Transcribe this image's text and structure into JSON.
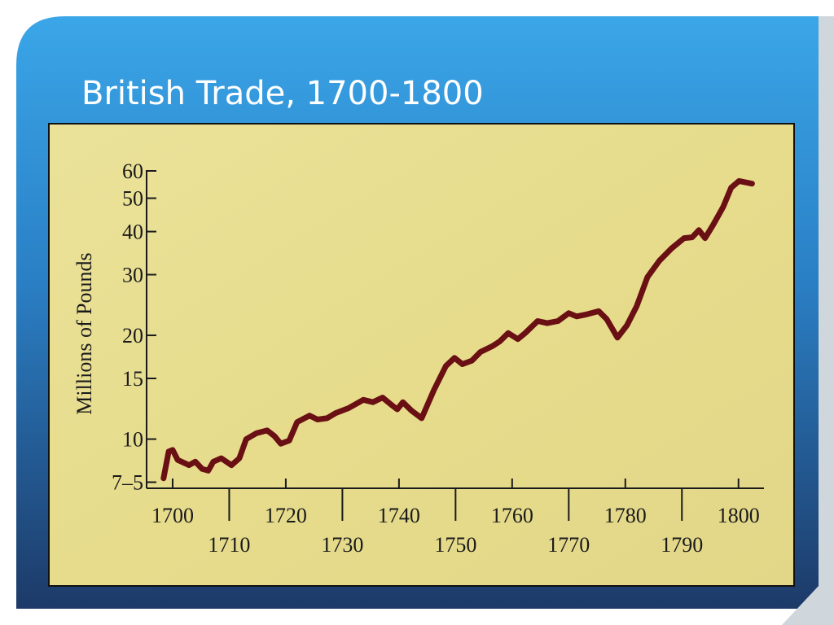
{
  "chart_data": {
    "type": "line",
    "title": "British Trade, 1700-1800",
    "ylabel": "Millions of Pounds",
    "log_scale": true,
    "grid": false,
    "color": "#6a1014",
    "xlim": [
      1695.4,
      1804.5
    ],
    "xticks": [
      1700,
      1710,
      1720,
      1730,
      1740,
      1750,
      1760,
      1770,
      1780,
      1790,
      1800
    ],
    "ylim": [
      7.2,
      60
    ],
    "yticks": [
      {
        "value": 7.5,
        "label": "7–5"
      },
      10,
      15,
      20,
      30,
      40,
      50,
      60
    ],
    "x": [
      1698.4,
      1699.3,
      1700,
      1700.9,
      1702.9,
      1704,
      1705.2,
      1706.3,
      1707.2,
      1708.6,
      1710.4,
      1711.8,
      1713,
      1714.8,
      1716.7,
      1718,
      1719.1,
      1720.6,
      1722,
      1724.2,
      1725.6,
      1727.3,
      1728.8,
      1731.1,
      1733.7,
      1735.4,
      1737.1,
      1738.6,
      1739.7,
      1740.7,
      1742.2,
      1744,
      1746.2,
      1748.3,
      1749.8,
      1751.2,
      1752.9,
      1754.4,
      1756.5,
      1757.8,
      1759.3,
      1761,
      1762.3,
      1764.5,
      1766.2,
      1768.1,
      1770,
      1771.4,
      1773.1,
      1775.3,
      1776.7,
      1778.6,
      1780.3,
      1782,
      1783.9,
      1786,
      1788.2,
      1790.4,
      1791.8,
      1793,
      1794.1,
      1795.5,
      1797.3,
      1798.7,
      1800.1,
      1802.4
    ],
    "values": [
      7.7,
      9.2,
      9.3,
      8.7,
      8.4,
      8.6,
      8.2,
      8.1,
      8.6,
      8.8,
      8.4,
      8.8,
      10,
      10.4,
      10.6,
      10.2,
      9.7,
      9.9,
      11.2,
      11.7,
      11.4,
      11.5,
      11.9,
      12.3,
      13.0,
      12.8,
      13.2,
      12.6,
      12.2,
      12.8,
      12.1,
      11.5,
      13.9,
      16.3,
      17.2,
      16.5,
      16.9,
      17.9,
      18.6,
      19.2,
      20.3,
      19.5,
      20.3,
      22.0,
      21.7,
      22.0,
      23.2,
      22.7,
      23.0,
      23.5,
      22.3,
      19.7,
      21.4,
      24.3,
      29.5,
      32.9,
      35.8,
      38.3,
      38.5,
      40.4,
      38.3,
      41.8,
      47.2,
      53.6,
      56.1,
      55.1
    ]
  }
}
